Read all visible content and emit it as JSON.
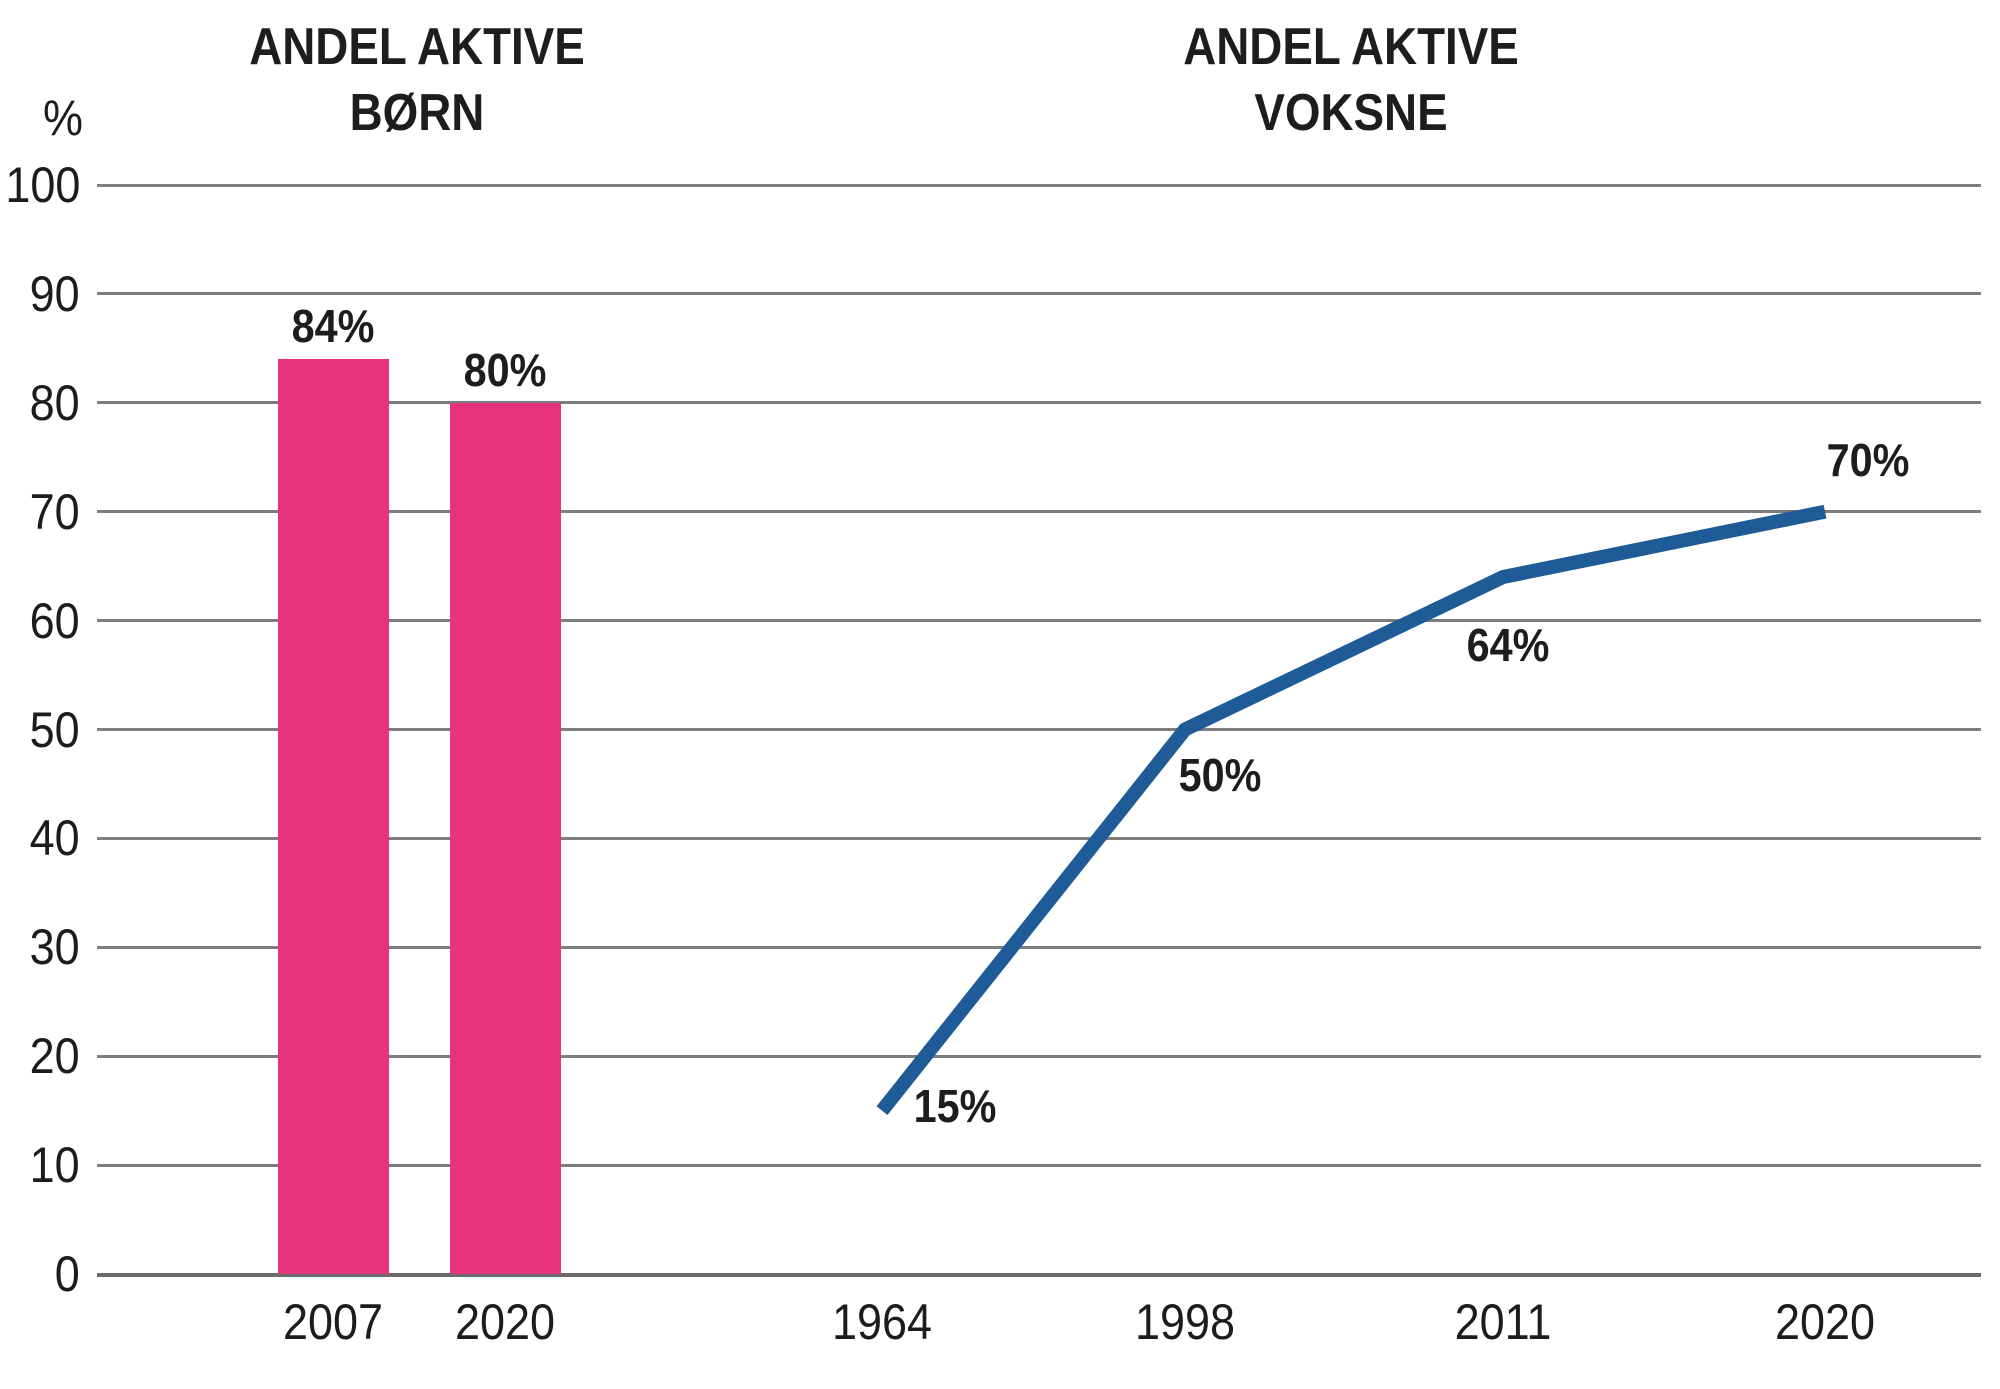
{
  "page": {
    "background": "#ffffff",
    "text_color": "#1d1d1b"
  },
  "y_axis": {
    "unit_label": "%",
    "ticks": [
      0,
      10,
      20,
      30,
      40,
      50,
      60,
      70,
      80,
      90,
      100
    ],
    "gridline_color": "#7d7d7d"
  },
  "chart_data": [
    {
      "type": "bar",
      "title": "ANDEL AKTIVE BØRN",
      "title_lines": [
        "ANDEL AKTIVE",
        "BØRN"
      ],
      "categories": [
        "2007",
        "2020"
      ],
      "values": [
        84,
        80
      ],
      "value_labels": [
        "84%",
        "80%"
      ],
      "bar_color": "#e6337c",
      "ylabel": "%",
      "ylim": [
        0,
        100
      ],
      "grid": true,
      "legend": "none"
    },
    {
      "type": "line",
      "title": "ANDEL AKTIVE VOKSNE",
      "title_lines": [
        "ANDEL AKTIVE",
        "VOKSNE"
      ],
      "x": [
        "1964",
        "1998",
        "2011",
        "2020"
      ],
      "values": [
        15,
        50,
        64,
        70
      ],
      "value_labels": [
        "15%",
        "50%",
        "64%",
        "70%"
      ],
      "line_color": "#1f5b97",
      "ylabel": "%",
      "ylim": [
        0,
        100
      ],
      "grid": true,
      "legend": "none"
    }
  ]
}
